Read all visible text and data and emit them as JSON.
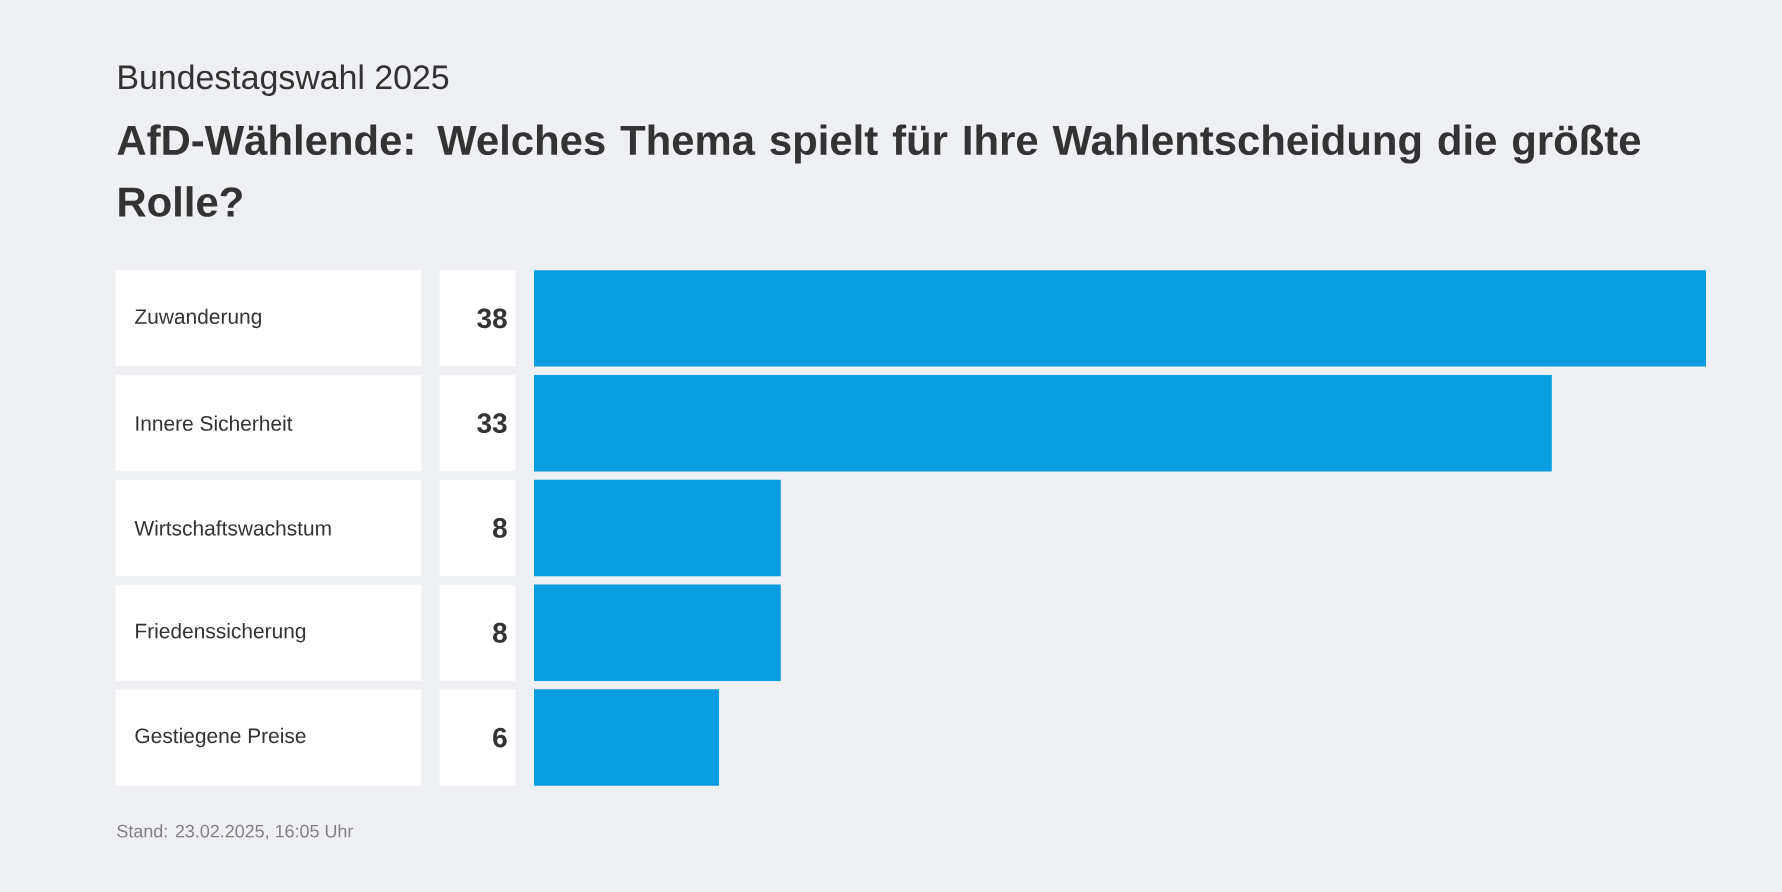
{
  "chart_data": {
    "type": "bar",
    "orientation": "horizontal",
    "subtitle": "Bundestagswahl 2025",
    "title": "AfD-Wählende: Welches Thema spielt für Ihre Wahlentscheidung die größte Rolle?",
    "categories": [
      "Zuwanderung",
      "Innere Sicherheit",
      "Wirtschaftswachstum",
      "Friedenssicherung",
      "Gestiegene Preise"
    ],
    "values": [
      38,
      33,
      8,
      8,
      6
    ],
    "color": "#0a9de0",
    "data_labels": true,
    "annotations": [
      "Stand:  23.02.2025, 16:05 Uhr"
    ]
  }
}
